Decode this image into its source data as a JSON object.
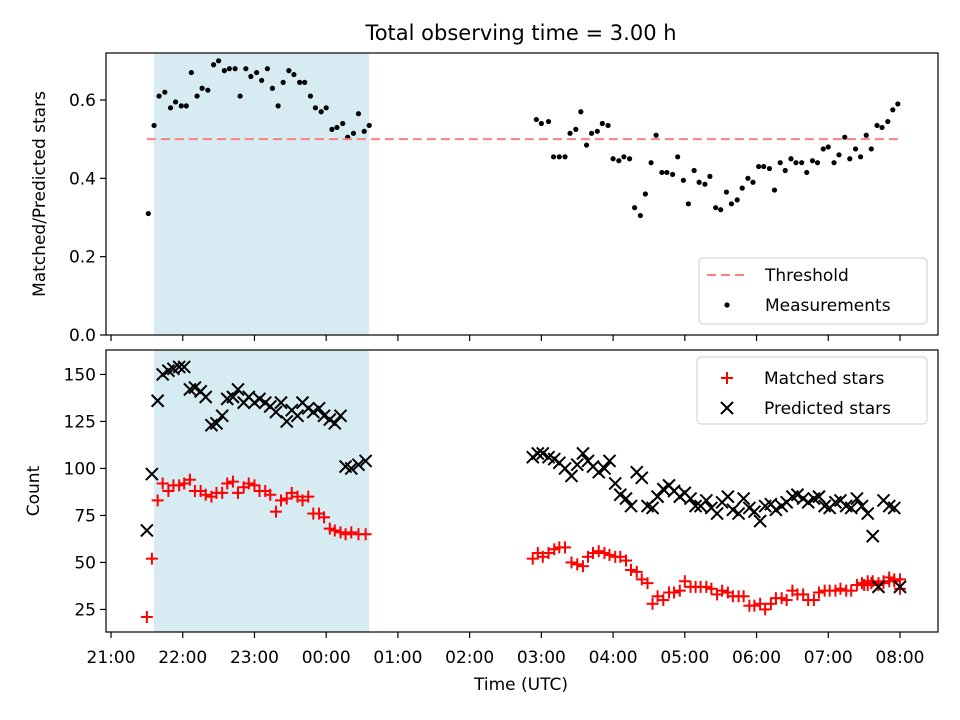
{
  "title": "Total observing time = 3.00 h",
  "chart_data": [
    {
      "type": "scatter",
      "ylabel": "Matched/Predicted stars",
      "xlim": [
        20.93,
        32.53
      ],
      "ylim": [
        0,
        0.72
      ],
      "yticks": [
        0.0,
        0.2,
        0.4,
        0.6
      ],
      "ytick_labels": [
        "0.0",
        "0.2",
        "0.4",
        "0.6"
      ],
      "grid": false,
      "legend": "lower right",
      "shaded_interval": [
        21.6,
        24.6
      ],
      "threshold": {
        "name": "Threshold",
        "value": 0.5,
        "x_range": [
          21.5,
          32.0
        ],
        "color": "#ff7f7f",
        "style": "dashed"
      },
      "series": [
        {
          "name": "Measurements",
          "color": "#000000",
          "marker": "dot",
          "x": [
            21.52,
            21.6,
            21.67,
            21.75,
            21.83,
            21.9,
            21.98,
            22.05,
            22.12,
            22.2,
            22.27,
            22.35,
            22.43,
            22.5,
            22.58,
            22.65,
            22.73,
            22.8,
            22.88,
            22.95,
            23.03,
            23.1,
            23.18,
            23.25,
            23.33,
            23.4,
            23.48,
            23.55,
            23.63,
            23.7,
            23.78,
            23.85,
            23.93,
            24.0,
            24.08,
            24.15,
            24.23,
            24.3,
            24.38,
            24.45,
            24.53,
            24.6,
            26.93,
            27.0,
            27.1,
            27.17,
            27.25,
            27.33,
            27.4,
            27.48,
            27.55,
            27.63,
            27.7,
            27.78,
            27.85,
            27.93,
            28.0,
            28.08,
            28.15,
            28.23,
            28.3,
            28.38,
            28.45,
            28.53,
            28.6,
            28.68,
            28.75,
            28.83,
            28.9,
            28.98,
            29.05,
            29.13,
            29.2,
            29.28,
            29.35,
            29.43,
            29.5,
            29.58,
            29.65,
            29.73,
            29.8,
            29.88,
            29.95,
            30.03,
            30.1,
            30.18,
            30.25,
            30.33,
            30.4,
            30.48,
            30.55,
            30.63,
            30.7,
            30.78,
            30.85,
            30.93,
            31.0,
            31.08,
            31.15,
            31.23,
            31.3,
            31.38,
            31.45,
            31.53,
            31.6,
            31.68,
            31.75,
            31.83,
            31.9,
            31.97
          ],
          "y": [
            0.31,
            0.535,
            0.61,
            0.62,
            0.58,
            0.595,
            0.585,
            0.585,
            0.67,
            0.61,
            0.63,
            0.625,
            0.69,
            0.7,
            0.675,
            0.68,
            0.68,
            0.61,
            0.68,
            0.66,
            0.67,
            0.65,
            0.68,
            0.63,
            0.585,
            0.645,
            0.675,
            0.665,
            0.645,
            0.645,
            0.61,
            0.58,
            0.57,
            0.58,
            0.525,
            0.53,
            0.54,
            0.505,
            0.515,
            0.565,
            0.52,
            0.535,
            0.55,
            0.54,
            0.545,
            0.455,
            0.455,
            0.455,
            0.515,
            0.525,
            0.57,
            0.485,
            0.515,
            0.52,
            0.54,
            0.535,
            0.45,
            0.445,
            0.455,
            0.45,
            0.325,
            0.305,
            0.36,
            0.44,
            0.51,
            0.415,
            0.415,
            0.41,
            0.455,
            0.395,
            0.335,
            0.42,
            0.39,
            0.385,
            0.405,
            0.325,
            0.32,
            0.365,
            0.335,
            0.345,
            0.375,
            0.4,
            0.39,
            0.43,
            0.43,
            0.425,
            0.37,
            0.44,
            0.42,
            0.45,
            0.44,
            0.44,
            0.415,
            0.445,
            0.44,
            0.475,
            0.48,
            0.44,
            0.46,
            0.505,
            0.45,
            0.475,
            0.455,
            0.51,
            0.475,
            0.535,
            0.53,
            0.545,
            0.575,
            0.59
          ]
        }
      ]
    },
    {
      "type": "scatter",
      "ylabel": "Count",
      "xlabel": "Time (UTC)",
      "xlim": [
        20.93,
        32.53
      ],
      "ylim": [
        13,
        163
      ],
      "xticks": [
        21,
        22,
        23,
        24,
        25,
        26,
        27,
        28,
        29,
        30,
        31,
        32
      ],
      "xtick_labels": [
        "21:00",
        "22:00",
        "23:00",
        "00:00",
        "01:00",
        "02:00",
        "03:00",
        "04:00",
        "05:00",
        "06:00",
        "07:00",
        "08:00"
      ],
      "yticks": [
        25,
        50,
        75,
        100,
        125,
        150
      ],
      "ytick_labels": [
        "25",
        "50",
        "75",
        "100",
        "125",
        "150"
      ],
      "grid": false,
      "legend": "upper right",
      "shaded_interval": [
        21.6,
        24.6
      ],
      "series": [
        {
          "name": "Matched stars",
          "color": "#ff0000",
          "marker": "plus",
          "x": [
            21.5,
            21.57,
            21.65,
            21.72,
            21.8,
            21.87,
            21.95,
            22.02,
            22.1,
            22.17,
            22.25,
            22.32,
            22.4,
            22.47,
            22.55,
            22.62,
            22.7,
            22.77,
            22.85,
            22.92,
            23.0,
            23.07,
            23.15,
            23.22,
            23.3,
            23.37,
            23.45,
            23.52,
            23.6,
            23.67,
            23.75,
            23.82,
            23.9,
            23.97,
            24.05,
            24.12,
            24.2,
            24.27,
            24.35,
            24.45,
            24.55,
            26.88,
            26.95,
            27.02,
            27.1,
            27.18,
            27.25,
            27.33,
            27.42,
            27.5,
            27.58,
            27.65,
            27.72,
            27.8,
            27.88,
            27.95,
            28.03,
            28.1,
            28.18,
            28.25,
            28.33,
            28.4,
            28.48,
            28.55,
            28.62,
            28.7,
            28.78,
            28.85,
            28.93,
            29.0,
            29.08,
            29.15,
            29.22,
            29.3,
            29.37,
            29.45,
            29.52,
            29.6,
            29.67,
            29.75,
            29.82,
            29.9,
            29.97,
            30.05,
            30.12,
            30.2,
            30.27,
            30.35,
            30.42,
            30.5,
            30.57,
            30.65,
            30.72,
            30.8,
            30.87,
            30.95,
            31.02,
            31.1,
            31.17,
            31.25,
            31.32,
            31.4,
            31.47,
            31.55,
            31.62,
            31.7,
            31.77,
            31.85,
            31.92,
            32.0
          ],
          "y": [
            21,
            52,
            83,
            92,
            88,
            91,
            91,
            92,
            94,
            88,
            88,
            86,
            85,
            87,
            87,
            92,
            93,
            87,
            90,
            92,
            91,
            88,
            88,
            86,
            77,
            83,
            84,
            87,
            85,
            83,
            85,
            76,
            76,
            74,
            68,
            67,
            66,
            65,
            66,
            65,
            65,
            52,
            55,
            53,
            55,
            57,
            58,
            58,
            50,
            49,
            48,
            53,
            55,
            56,
            55,
            54,
            53,
            53,
            51,
            46,
            45,
            41,
            39,
            28,
            32,
            30,
            34,
            34,
            35,
            40,
            37,
            37,
            37,
            37,
            36,
            33,
            35,
            34,
            32,
            32,
            32,
            27,
            27,
            28,
            25,
            28,
            31,
            31,
            30,
            35,
            33,
            33,
            30,
            30,
            34,
            35,
            35,
            35,
            36,
            35,
            35,
            38,
            39,
            40,
            40,
            38,
            39,
            40,
            40,
            41
          ],
          "extra_points": {
            "x": [
              31.5,
              31.55,
              31.6,
              31.7,
              31.77,
              31.85,
              31.92,
              32.0
            ],
            "y": [
              38,
              38,
              39,
              39,
              40,
              42,
              41,
              36
            ]
          }
        },
        {
          "name": "Predicted stars",
          "color": "#000000",
          "marker": "x",
          "x": [
            21.5,
            21.57,
            21.65,
            21.72,
            21.8,
            21.87,
            21.95,
            22.02,
            22.1,
            22.17,
            22.25,
            22.32,
            22.4,
            22.47,
            22.55,
            22.62,
            22.7,
            22.77,
            22.85,
            22.92,
            23.0,
            23.07,
            23.15,
            23.22,
            23.3,
            23.37,
            23.45,
            23.52,
            23.6,
            23.67,
            23.75,
            23.82,
            23.9,
            23.97,
            24.05,
            24.12,
            24.2,
            24.27,
            24.35,
            24.45,
            24.55,
            26.88,
            26.95,
            27.02,
            27.1,
            27.18,
            27.25,
            27.33,
            27.42,
            27.5,
            27.58,
            27.65,
            27.72,
            27.8,
            27.88,
            27.95,
            28.03,
            28.1,
            28.18,
            28.25,
            28.33,
            28.4,
            28.48,
            28.55,
            28.62,
            28.7,
            28.78,
            28.85,
            28.93,
            29.0,
            29.08,
            29.15,
            29.22,
            29.3,
            29.37,
            29.45,
            29.52,
            29.6,
            29.67,
            29.75,
            29.82,
            29.9,
            29.97,
            30.05,
            30.12,
            30.2,
            30.27,
            30.35,
            30.42,
            30.5,
            30.57,
            30.65,
            30.72,
            30.8,
            30.87,
            30.95,
            31.02,
            31.1,
            31.17,
            31.25,
            31.32,
            31.4,
            31.47,
            31.55,
            31.62,
            31.7,
            31.77,
            31.85,
            31.92,
            32.0
          ],
          "y": [
            67,
            97,
            136,
            150,
            152,
            153,
            154,
            154,
            142,
            143,
            141,
            138,
            123,
            124,
            128,
            137,
            138,
            142,
            135,
            138,
            135,
            137,
            135,
            133,
            130,
            135,
            125,
            131,
            128,
            135,
            132,
            130,
            132,
            128,
            126,
            124,
            128,
            101,
            100,
            102,
            104,
            106,
            108,
            108,
            106,
            105,
            103,
            100,
            96,
            102,
            108,
            104,
            101,
            98,
            100,
            104,
            92,
            86,
            84,
            80,
            98,
            95,
            80,
            79,
            85,
            89,
            91,
            88,
            85,
            87,
            84,
            80,
            80,
            83,
            79,
            76,
            82,
            85,
            78,
            76,
            84,
            79,
            77,
            72,
            80,
            81,
            78,
            80,
            82,
            85,
            86,
            84,
            82,
            84,
            85,
            80,
            79,
            82,
            83,
            80,
            79,
            84,
            80,
            76,
            64,
            37,
            83,
            80,
            79,
            37
          ]
        }
      ]
    }
  ]
}
